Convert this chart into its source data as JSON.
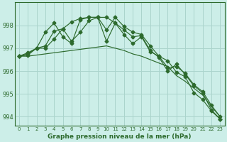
{
  "title": "Graphe pression niveau de la mer (hPa)",
  "background_color": "#cceee8",
  "grid_color": "#aad4cc",
  "line_color": "#2d6a2d",
  "marker_color": "#2d6a2d",
  "xlim": [
    -0.5,
    23.5
  ],
  "ylim": [
    993.6,
    999.0
  ],
  "yticks": [
    994,
    995,
    996,
    997,
    998
  ],
  "xticks": [
    0,
    1,
    2,
    3,
    4,
    5,
    6,
    7,
    8,
    9,
    10,
    11,
    12,
    13,
    14,
    15,
    16,
    17,
    18,
    19,
    20,
    21,
    22,
    23
  ],
  "series": [
    {
      "y": [
        996.65,
        996.75,
        997.0,
        997.7,
        998.1,
        997.5,
        997.2,
        998.25,
        998.35,
        998.35,
        997.3,
        998.1,
        997.8,
        997.5,
        997.55,
        996.9,
        996.6,
        996.0,
        996.3,
        995.85,
        995.35,
        995.05,
        994.3,
        993.9
      ],
      "has_markers": true
    },
    {
      "y": [
        996.65,
        996.8,
        997.0,
        997.1,
        997.75,
        997.85,
        997.3,
        997.7,
        998.2,
        998.35,
        998.35,
        998.1,
        997.6,
        997.2,
        997.5,
        996.85,
        996.65,
        996.15,
        996.2,
        995.9,
        995.4,
        995.1,
        994.5,
        994.0
      ],
      "has_markers": true
    },
    {
      "y": [
        996.65,
        996.7,
        997.0,
        997.0,
        997.4,
        997.85,
        998.15,
        998.3,
        998.35,
        998.35,
        997.8,
        998.35,
        997.95,
        997.7,
        997.6,
        997.1,
        996.65,
        996.45,
        995.95,
        995.75,
        995.05,
        994.75,
        994.25,
        993.9
      ],
      "has_markers": true
    },
    {
      "y": [
        996.65,
        996.65,
        996.7,
        996.75,
        996.8,
        996.85,
        996.9,
        996.95,
        997.0,
        997.05,
        997.1,
        997.0,
        996.9,
        996.75,
        996.65,
        996.5,
        996.35,
        996.2,
        995.8,
        995.55,
        995.25,
        994.95,
        994.45,
        994.0
      ],
      "has_markers": false
    }
  ]
}
